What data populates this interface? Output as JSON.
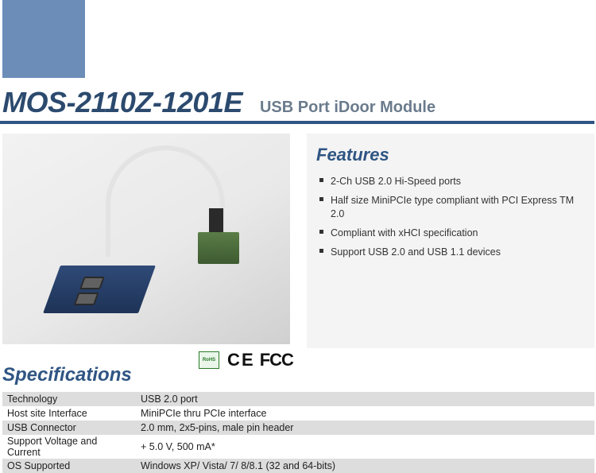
{
  "colors": {
    "accent_block": "#6b8db8",
    "title_color": "#2c4a6e",
    "subtitle_color": "#6a7b8c",
    "divider_color": "#2f5583",
    "panel_bg": "#f4f4f4",
    "table_shade": "#dddddd",
    "text_color": "#333333"
  },
  "header": {
    "title": "MOS-2110Z-1201E",
    "subtitle": "USB Port iDoor Module"
  },
  "cert": {
    "rohs_label": "RoHS",
    "ce_label": "C E",
    "fcc_label": "FCC"
  },
  "features": {
    "heading": "Features",
    "items": [
      "2-Ch USB 2.0 Hi-Speed ports",
      "Half size MiniPCIe type compliant with PCI Express TM 2.0",
      "Compliant with xHCI specification",
      "Support USB 2.0 and USB 1.1 devices"
    ]
  },
  "specs": {
    "heading": "Specifications",
    "rows": [
      {
        "label": "Technology",
        "value": "USB 2.0 port"
      },
      {
        "label": "Host site Interface",
        "value": "MiniPCIe thru PCIe interface"
      },
      {
        "label": "USB Connector",
        "value": "2.0 mm, 2x5-pins, male pin header"
      },
      {
        "label": "Support Voltage and Current",
        "value": "+ 5.0 V, 500 mA*"
      },
      {
        "label": "OS Supported",
        "value": "Windows XP/ Vista/ 7/ 8/8.1 (32 and 64-bits)"
      }
    ]
  }
}
